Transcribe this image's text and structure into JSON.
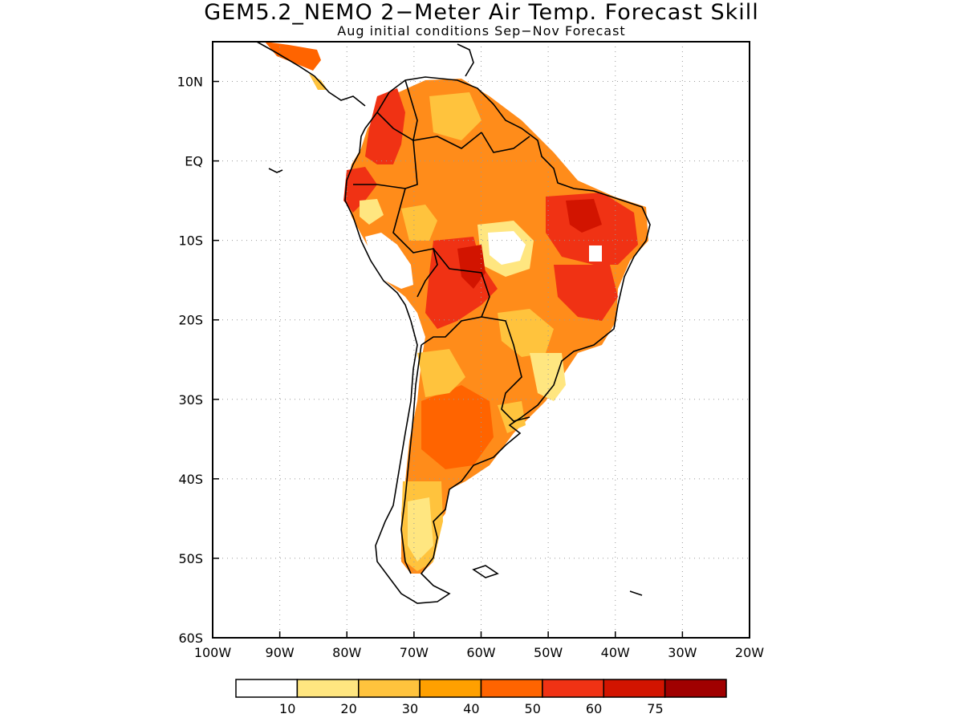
{
  "title": "GEM5.2_NEMO 2−Meter Air Temp. Forecast Skill",
  "subtitle": "Aug initial conditions  Sep−Nov Forecast",
  "lon_ticks": [
    "100W",
    "90W",
    "80W",
    "70W",
    "60W",
    "50W",
    "40W",
    "30W",
    "20W"
  ],
  "lat_ticks": [
    "10N",
    "EQ",
    "10S",
    "20S",
    "30S",
    "40S",
    "50S",
    "60S"
  ],
  "colorbar": {
    "labels": [
      "10",
      "20",
      "30",
      "40",
      "50",
      "60",
      "75"
    ],
    "colors": [
      "#ffffff",
      "#ffe680",
      "#ffc33d",
      "#ffa000",
      "#ff6400",
      "#f03214",
      "#d21400",
      "#a00000"
    ]
  }
}
